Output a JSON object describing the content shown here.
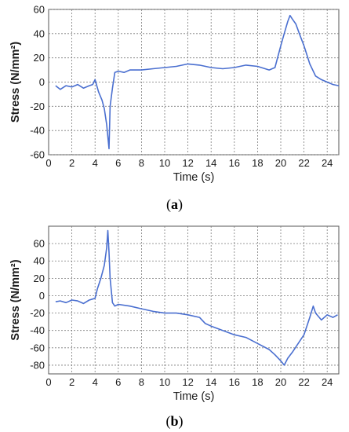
{
  "figure": {
    "panel_a_caption": {
      "open": "(",
      "letter": "a",
      "close": ")"
    },
    "panel_b_caption": {
      "open": "(",
      "letter": "b",
      "close": ")"
    }
  },
  "colors": {
    "series": "#4a6fd0",
    "grid": "#7a7a7a",
    "axis": "#555555"
  },
  "chart_data": [
    {
      "type": "line",
      "title": "",
      "xlabel": "Time (s)",
      "ylabel": "Stress (N/mm²)",
      "xlim": [
        0,
        25
      ],
      "ylim": [
        -60,
        60
      ],
      "xticks": [
        0,
        2,
        4,
        6,
        8,
        10,
        12,
        14,
        16,
        18,
        20,
        22,
        24
      ],
      "yticks": [
        -60,
        -40,
        -20,
        0,
        20,
        40,
        60
      ],
      "grid": true,
      "legend": "none",
      "series": [
        {
          "x": [
            0.6,
            1.0,
            1.5,
            2.0,
            2.5,
            3.0,
            3.5,
            3.8,
            4.0,
            4.3,
            4.6,
            4.8,
            5.0,
            5.1,
            5.2,
            5.3,
            5.5,
            5.7,
            6.0,
            6.5,
            7.0,
            8.0,
            9.0,
            10.0,
            11.0,
            12.0,
            13.0,
            14.0,
            15.0,
            16.0,
            17.0,
            18.0,
            19.0,
            19.5,
            20.0,
            20.3,
            20.6,
            20.8,
            21.0,
            21.3,
            21.6,
            22.0,
            22.5,
            23.0,
            23.5,
            24.0,
            24.5,
            25.0
          ],
          "y": [
            -3,
            -6,
            -3,
            -4,
            -2,
            -5,
            -3,
            -2,
            2,
            -8,
            -15,
            -22,
            -35,
            -45,
            -55,
            -20,
            -5,
            8,
            9,
            8,
            10,
            10,
            11,
            12,
            13,
            15,
            14,
            12,
            11,
            12,
            14,
            13,
            10,
            12,
            30,
            40,
            50,
            55,
            52,
            48,
            40,
            30,
            15,
            5,
            2,
            0,
            -2,
            -3
          ]
        }
      ]
    },
    {
      "type": "line",
      "title": "",
      "xlabel": "Time (s)",
      "ylabel": "Stress (N/mm²)",
      "xlim": [
        0,
        25
      ],
      "ylim": [
        -90,
        80
      ],
      "xticks": [
        0,
        2,
        4,
        6,
        8,
        10,
        12,
        14,
        16,
        18,
        20,
        22,
        24
      ],
      "yticks": [
        -80,
        -60,
        -40,
        -20,
        0,
        20,
        40,
        60
      ],
      "grid": true,
      "legend": "none",
      "series": [
        {
          "x": [
            0.6,
            1.0,
            1.5,
            2.0,
            2.5,
            3.0,
            3.5,
            4.0,
            4.2,
            4.5,
            4.8,
            5.0,
            5.1,
            5.2,
            5.3,
            5.5,
            5.7,
            6.0,
            7.0,
            8.0,
            9.0,
            10.0,
            11.0,
            12.0,
            13.0,
            13.5,
            14.0,
            15.0,
            16.0,
            17.0,
            18.0,
            19.0,
            19.5,
            20.0,
            20.3,
            20.6,
            21.0,
            21.5,
            22.0,
            22.5,
            22.8,
            23.0,
            23.5,
            24.0,
            24.5,
            24.9
          ],
          "y": [
            -7,
            -6,
            -8,
            -5,
            -6,
            -9,
            -5,
            -3,
            8,
            20,
            35,
            55,
            75,
            50,
            20,
            -8,
            -12,
            -10,
            -12,
            -15,
            -18,
            -20,
            -20,
            -22,
            -25,
            -32,
            -35,
            -40,
            -45,
            -48,
            -55,
            -62,
            -68,
            -75,
            -80,
            -72,
            -65,
            -55,
            -45,
            -25,
            -12,
            -20,
            -28,
            -22,
            -25,
            -22
          ]
        }
      ]
    }
  ]
}
